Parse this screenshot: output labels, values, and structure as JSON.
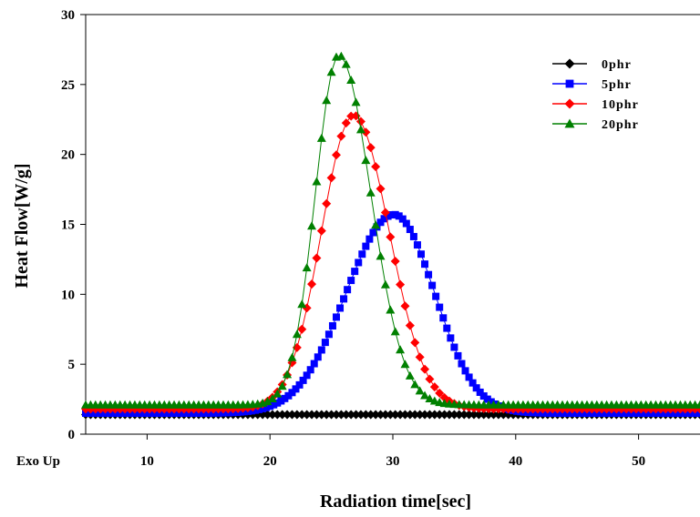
{
  "chart_data": {
    "type": "line",
    "title": "",
    "xlabel": "Radiation time[sec]",
    "ylabel": "Heat Flow[W/g]",
    "xlim": [
      5,
      55
    ],
    "ylim": [
      0,
      30
    ],
    "x_ticks": [
      10,
      20,
      30,
      40,
      50
    ],
    "y_ticks": [
      0,
      5,
      10,
      15,
      20,
      25,
      30
    ],
    "x_corner_label": "Exo Up",
    "grid": false,
    "legend_position": "top-right",
    "series": [
      {
        "name": "0phr",
        "color": "#000000",
        "marker": "diamond",
        "shape": {
          "baseline": 1.4,
          "peak_x": 30,
          "peak_height": 0,
          "rise_width": 1,
          "fall_width": 1,
          "x_start": 5,
          "x_end": 55,
          "step": 0.4
        }
      },
      {
        "name": "5phr",
        "color": "#0000ff",
        "marker": "square",
        "shape": {
          "baseline": 1.5,
          "peak_x": 30.1,
          "peak_height": 14.2,
          "rise_width": 3.9,
          "fall_width": 3.3,
          "x_start": 5,
          "x_end": 55,
          "step": 0.3
        }
      },
      {
        "name": "10phr",
        "color": "#ff0000",
        "marker": "diamond",
        "shape": {
          "baseline": 1.8,
          "peak_x": 26.8,
          "peak_height": 21.0,
          "rise_width": 2.6,
          "fall_width": 2.9,
          "x_start": 5,
          "x_end": 55,
          "step": 0.4
        }
      },
      {
        "name": "20phr",
        "color": "#008000",
        "marker": "triangle",
        "shape": {
          "baseline": 2.1,
          "peak_x": 25.6,
          "peak_height": 25.0,
          "rise_width": 1.9,
          "fall_width": 2.6,
          "x_start": 5,
          "x_end": 55,
          "step": 0.4
        }
      }
    ]
  }
}
